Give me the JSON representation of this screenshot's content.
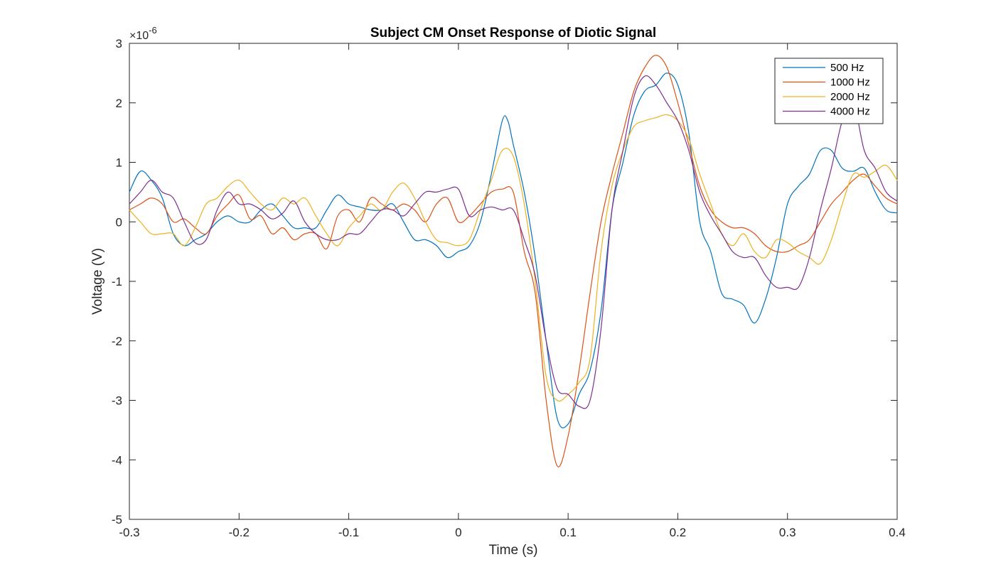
{
  "chart_data": {
    "type": "line",
    "title": "Subject CM Onset Response of Diotic Signal",
    "xlabel": "Time (s)",
    "ylabel": "Voltage (V)",
    "y_exponent_base": "×10",
    "y_exponent_power": "-6",
    "xlim": [
      -0.3,
      0.4
    ],
    "ylim": [
      -5,
      3
    ],
    "xticks": [
      "-0.3",
      "-0.2",
      "-0.1",
      "0",
      "0.1",
      "0.2",
      "0.3",
      "0.4"
    ],
    "yticks": [
      "-5",
      "-4",
      "-3",
      "-2",
      "-1",
      "0",
      "1",
      "2",
      "3"
    ],
    "grid": false,
    "legend_position": "top-right",
    "series": [
      {
        "name": "500 Hz",
        "color": "#0072BD",
        "x": [
          -0.3,
          -0.29,
          -0.28,
          -0.27,
          -0.26,
          -0.25,
          -0.24,
          -0.23,
          -0.22,
          -0.21,
          -0.2,
          -0.19,
          -0.18,
          -0.17,
          -0.16,
          -0.15,
          -0.14,
          -0.13,
          -0.12,
          -0.11,
          -0.1,
          -0.09,
          -0.08,
          -0.07,
          -0.06,
          -0.05,
          -0.04,
          -0.03,
          -0.02,
          -0.01,
          0.0,
          0.01,
          0.02,
          0.03,
          0.04,
          0.045,
          0.05,
          0.06,
          0.07,
          0.08,
          0.09,
          0.1,
          0.11,
          0.12,
          0.13,
          0.14,
          0.15,
          0.16,
          0.17,
          0.18,
          0.19,
          0.2,
          0.21,
          0.22,
          0.23,
          0.24,
          0.25,
          0.26,
          0.27,
          0.28,
          0.29,
          0.3,
          0.31,
          0.32,
          0.33,
          0.34,
          0.35,
          0.36,
          0.37,
          0.38,
          0.39,
          0.4
        ],
        "values": [
          0.5,
          0.85,
          0.7,
          0.4,
          -0.2,
          -0.4,
          -0.3,
          -0.2,
          0.0,
          0.1,
          0.0,
          0.0,
          0.2,
          0.3,
          0.1,
          -0.1,
          -0.1,
          -0.1,
          0.2,
          0.45,
          0.3,
          0.25,
          0.2,
          0.2,
          0.3,
          0.0,
          -0.3,
          -0.3,
          -0.4,
          -0.6,
          -0.5,
          -0.4,
          0.0,
          0.8,
          1.7,
          1.7,
          1.3,
          0.5,
          -0.6,
          -2.0,
          -3.3,
          -3.4,
          -2.9,
          -2.5,
          -1.5,
          0.2,
          1.0,
          1.8,
          2.2,
          2.3,
          2.5,
          2.3,
          1.5,
          0.0,
          -0.5,
          -1.2,
          -1.3,
          -1.4,
          -1.7,
          -1.3,
          -0.6,
          0.3,
          0.6,
          0.8,
          1.2,
          1.2,
          0.9,
          0.85,
          0.9,
          0.5,
          0.2,
          0.15
        ]
      },
      {
        "name": "1000 Hz",
        "color": "#D95319",
        "x": [
          -0.3,
          -0.29,
          -0.28,
          -0.27,
          -0.26,
          -0.25,
          -0.24,
          -0.23,
          -0.22,
          -0.21,
          -0.2,
          -0.19,
          -0.18,
          -0.17,
          -0.16,
          -0.15,
          -0.14,
          -0.13,
          -0.12,
          -0.11,
          -0.1,
          -0.09,
          -0.08,
          -0.07,
          -0.06,
          -0.05,
          -0.04,
          -0.03,
          -0.02,
          -0.01,
          0.0,
          0.01,
          0.02,
          0.03,
          0.04,
          0.05,
          0.06,
          0.07,
          0.08,
          0.09,
          0.1,
          0.11,
          0.12,
          0.13,
          0.14,
          0.15,
          0.16,
          0.17,
          0.18,
          0.19,
          0.2,
          0.21,
          0.22,
          0.23,
          0.24,
          0.25,
          0.26,
          0.27,
          0.28,
          0.29,
          0.3,
          0.31,
          0.32,
          0.33,
          0.34,
          0.35,
          0.36,
          0.37,
          0.38,
          0.39,
          0.4
        ],
        "values": [
          0.2,
          0.3,
          0.4,
          0.3,
          0.0,
          0.05,
          -0.1,
          -0.2,
          0.1,
          0.3,
          0.45,
          0.05,
          0.1,
          -0.2,
          -0.1,
          -0.3,
          -0.2,
          -0.2,
          -0.45,
          0.1,
          0.2,
          0.0,
          0.4,
          0.3,
          0.2,
          0.3,
          0.2,
          0.0,
          0.3,
          0.4,
          0.0,
          0.1,
          0.3,
          0.5,
          0.55,
          0.5,
          -0.5,
          -1.2,
          -3.0,
          -4.1,
          -3.6,
          -2.5,
          -1.2,
          0.0,
          0.8,
          1.5,
          2.2,
          2.6,
          2.8,
          2.6,
          2.0,
          1.3,
          0.6,
          0.2,
          0.0,
          -0.1,
          -0.1,
          -0.2,
          -0.4,
          -0.5,
          -0.5,
          -0.4,
          -0.3,
          0.0,
          0.3,
          0.5,
          0.7,
          0.8,
          0.6,
          0.4,
          0.3
        ]
      },
      {
        "name": "2000 Hz",
        "color": "#EDB120",
        "x": [
          -0.3,
          -0.29,
          -0.28,
          -0.27,
          -0.26,
          -0.25,
          -0.24,
          -0.23,
          -0.22,
          -0.21,
          -0.2,
          -0.19,
          -0.18,
          -0.17,
          -0.16,
          -0.15,
          -0.14,
          -0.13,
          -0.12,
          -0.11,
          -0.1,
          -0.09,
          -0.08,
          -0.07,
          -0.06,
          -0.05,
          -0.04,
          -0.03,
          -0.02,
          -0.01,
          0.0,
          0.01,
          0.02,
          0.03,
          0.04,
          0.05,
          0.06,
          0.07,
          0.08,
          0.09,
          0.1,
          0.11,
          0.12,
          0.13,
          0.14,
          0.15,
          0.16,
          0.17,
          0.18,
          0.19,
          0.2,
          0.21,
          0.22,
          0.23,
          0.24,
          0.25,
          0.26,
          0.27,
          0.28,
          0.29,
          0.3,
          0.31,
          0.32,
          0.33,
          0.34,
          0.35,
          0.36,
          0.37,
          0.38,
          0.39,
          0.4
        ],
        "values": [
          0.2,
          0.0,
          -0.2,
          -0.2,
          -0.2,
          -0.4,
          -0.1,
          0.3,
          0.4,
          0.6,
          0.7,
          0.5,
          0.3,
          0.2,
          0.4,
          0.3,
          0.4,
          0.1,
          -0.2,
          -0.4,
          -0.1,
          0.1,
          0.3,
          0.2,
          0.5,
          0.65,
          0.4,
          0.0,
          -0.3,
          -0.35,
          -0.4,
          -0.3,
          0.2,
          0.7,
          1.2,
          1.1,
          0.3,
          -1.0,
          -2.6,
          -3.0,
          -2.9,
          -2.7,
          -2.3,
          -0.5,
          0.6,
          1.2,
          1.6,
          1.7,
          1.75,
          1.8,
          1.7,
          1.4,
          0.8,
          0.3,
          -0.2,
          -0.4,
          -0.2,
          -0.5,
          -0.6,
          -0.3,
          -0.35,
          -0.5,
          -0.6,
          -0.7,
          -0.3,
          0.3,
          0.8,
          0.75,
          0.85,
          0.95,
          0.7
        ]
      },
      {
        "name": "4000 Hz",
        "color": "#7E2F8E",
        "x": [
          -0.3,
          -0.29,
          -0.28,
          -0.27,
          -0.26,
          -0.25,
          -0.24,
          -0.23,
          -0.22,
          -0.21,
          -0.2,
          -0.19,
          -0.18,
          -0.17,
          -0.16,
          -0.15,
          -0.14,
          -0.13,
          -0.12,
          -0.11,
          -0.1,
          -0.09,
          -0.08,
          -0.07,
          -0.06,
          -0.05,
          -0.04,
          -0.03,
          -0.02,
          -0.01,
          0.0,
          0.01,
          0.02,
          0.03,
          0.04,
          0.05,
          0.06,
          0.07,
          0.08,
          0.09,
          0.1,
          0.11,
          0.12,
          0.13,
          0.14,
          0.15,
          0.16,
          0.17,
          0.18,
          0.19,
          0.2,
          0.21,
          0.22,
          0.23,
          0.24,
          0.25,
          0.26,
          0.27,
          0.28,
          0.29,
          0.3,
          0.31,
          0.32,
          0.33,
          0.34,
          0.35,
          0.36,
          0.37,
          0.38,
          0.39,
          0.4
        ],
        "values": [
          0.3,
          0.5,
          0.7,
          0.5,
          0.4,
          0.0,
          -0.35,
          -0.3,
          0.2,
          0.5,
          0.3,
          0.3,
          0.2,
          0.05,
          0.15,
          0.35,
          0.0,
          -0.2,
          -0.3,
          -0.3,
          -0.2,
          -0.2,
          0.0,
          0.2,
          0.2,
          0.1,
          0.3,
          0.5,
          0.5,
          0.55,
          0.55,
          0.1,
          0.2,
          0.25,
          0.2,
          0.2,
          -0.3,
          -0.9,
          -2.0,
          -2.8,
          -2.9,
          -3.1,
          -3.0,
          -1.8,
          0.2,
          1.2,
          2.1,
          2.45,
          2.3,
          2.0,
          1.7,
          1.2,
          0.5,
          0.1,
          -0.2,
          -0.5,
          -0.6,
          -0.6,
          -0.9,
          -1.1,
          -1.1,
          -1.1,
          -0.6,
          0.2,
          0.9,
          1.7,
          2.0,
          1.2,
          0.9,
          0.5,
          0.35
        ]
      }
    ]
  }
}
